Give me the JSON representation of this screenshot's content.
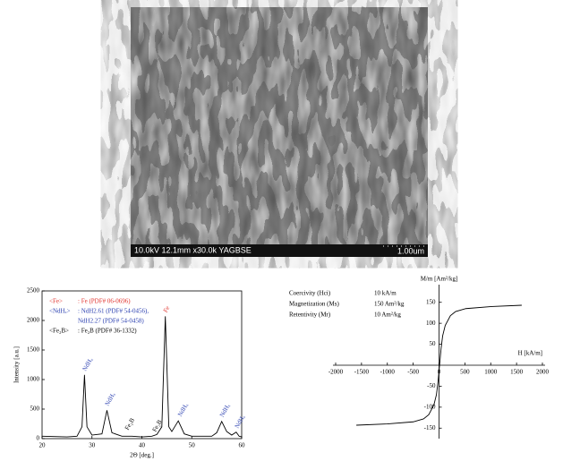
{
  "sem": {
    "caption": "10.0kV 12.1mm x30.0k YAGBSE",
    "scale": "1.00um"
  },
  "chart_data": [
    {
      "type": "line",
      "axis_style": "box",
      "xlabel": "2Θ [deg.]",
      "ylabel": "Intensity [a.u.]",
      "xlim": [
        20,
        60
      ],
      "xticks": [
        20,
        30,
        40,
        50,
        60
      ],
      "ylim": [
        0,
        2500
      ],
      "yticks": [
        0,
        500,
        1000,
        1500,
        2000,
        2500
      ],
      "legend": [
        {
          "key": "<Fe>",
          "text": ": Fe (PDF# 06-0696)",
          "color": "#e0302a"
        },
        {
          "key": "<NdHₓ>",
          "text": ": NdH2.61 (PDF# 54-0456),",
          "color": "#2a3fb0"
        },
        {
          "key": "",
          "text": "NdH2.27 (PDF# 54-0458)",
          "color": "#2a3fb0"
        },
        {
          "key": "<Fe₂B>",
          "text": ": Fe₂B (PDF# 36-1332)",
          "color": "#000000"
        }
      ],
      "annotations": [
        {
          "text": "NdHₓ",
          "x": 28.5,
          "y": 1150,
          "color": "#2a3fb0"
        },
        {
          "text": "NdHₓ",
          "x": 33,
          "y": 560,
          "color": "#2a3fb0"
        },
        {
          "text": "Fe₂B",
          "x": 37,
          "y": 150,
          "color": "#000000"
        },
        {
          "text": "Fe₂B",
          "x": 42.5,
          "y": 120,
          "color": "#000000"
        },
        {
          "text": "Fe",
          "x": 44.7,
          "y": 2140,
          "color": "#e0302a"
        },
        {
          "text": "NdHₓ",
          "x": 47.6,
          "y": 380,
          "color": "#2a3fb0"
        },
        {
          "text": "NdHₓ",
          "x": 56,
          "y": 370,
          "color": "#2a3fb0"
        },
        {
          "text": "NdHₓ",
          "x": 59,
          "y": 180,
          "color": "#2a3fb0"
        }
      ],
      "series": [
        {
          "color": "#000000",
          "x": [
            20,
            25,
            27,
            28,
            28.5,
            29,
            30,
            32,
            33,
            34,
            36,
            38,
            40,
            42,
            43,
            44,
            44.7,
            45.4,
            46,
            47.3,
            48.5,
            50,
            54,
            55,
            56,
            57,
            58,
            58.9,
            59.5,
            60
          ],
          "values": [
            40,
            30,
            40,
            200,
            1080,
            200,
            60,
            80,
            480,
            100,
            40,
            40,
            30,
            40,
            70,
            200,
            2070,
            200,
            120,
            300,
            80,
            40,
            40,
            100,
            290,
            120,
            60,
            110,
            40,
            30
          ]
        }
      ]
    },
    {
      "type": "line",
      "axis_style": "cross",
      "xlabel": "H [kA/m]",
      "ylabel": "M/m [Am²/kg]",
      "xlim": [
        -2000,
        2000
      ],
      "xticks": [
        -2000,
        -1500,
        -1000,
        -500,
        0,
        500,
        1000,
        1500,
        2000
      ],
      "ylim": [
        -175,
        175
      ],
      "yticks": [
        -150,
        -100,
        -50,
        50,
        100,
        150
      ],
      "info": [
        [
          "Coercivity (Hci)",
          "10 kA/m"
        ],
        [
          "Magnetization (Ms)",
          "150 Am²/kg"
        ],
        [
          "Retentivity (Mr)",
          "10 Am²/kg"
        ]
      ],
      "series": [
        {
          "color": "#000000",
          "x": [
            -1600,
            -1000,
            -500,
            -300,
            -200,
            -100,
            -50,
            -20,
            10,
            40,
            70,
            120,
            220,
            320,
            520,
            1020,
            1600
          ],
          "values": [
            -143,
            -140,
            -135,
            -128,
            -118,
            -95,
            -70,
            -40,
            0,
            40,
            70,
            95,
            118,
            128,
            135,
            140,
            143
          ]
        }
      ]
    }
  ]
}
